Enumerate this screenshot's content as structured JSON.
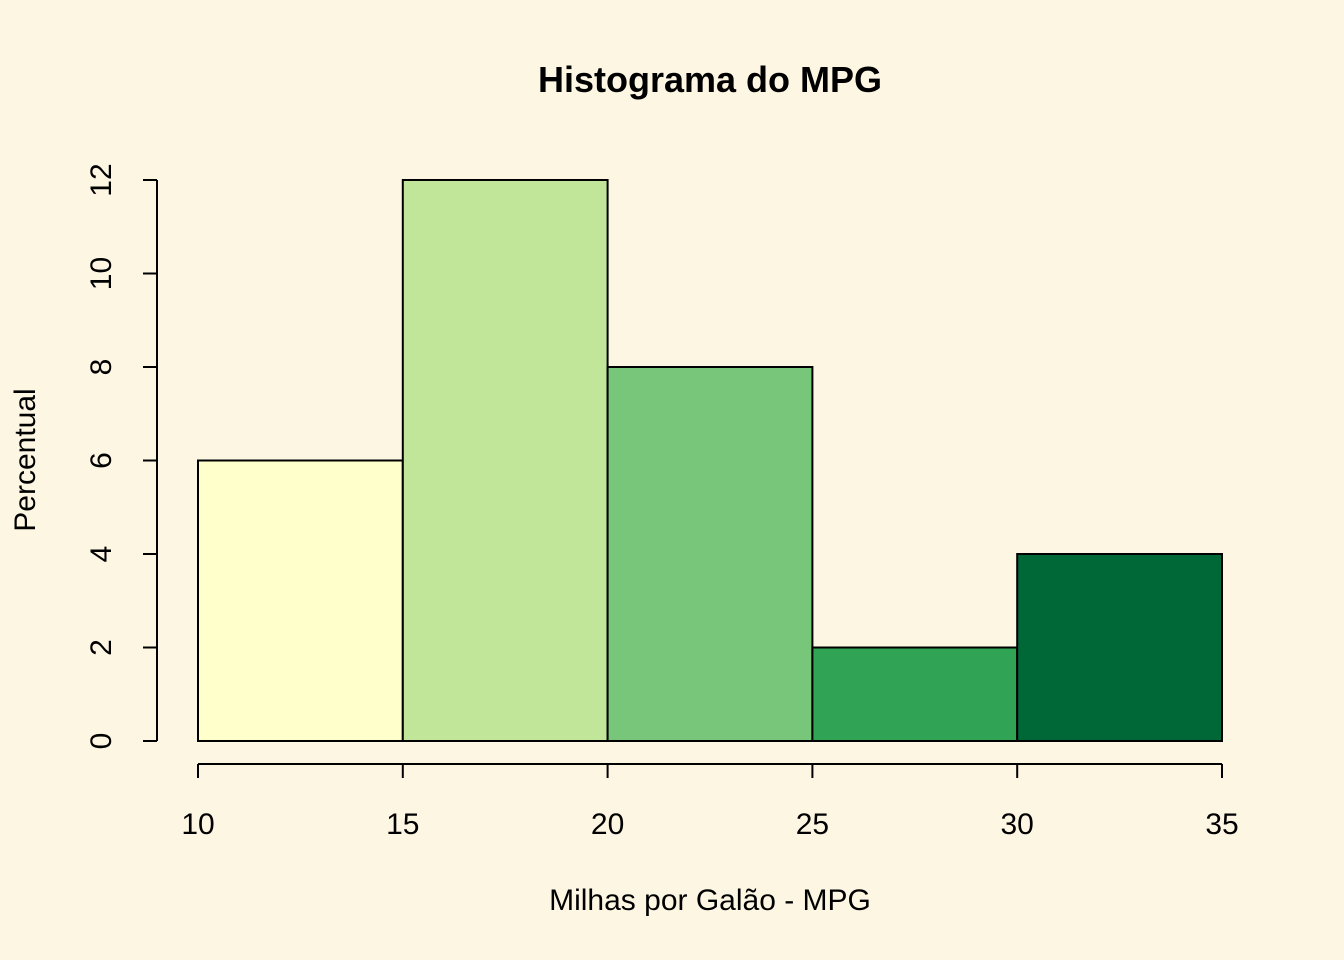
{
  "chart_data": {
    "type": "bar",
    "title": "Histograma do MPG",
    "xlabel": "Milhas por Galão - MPG",
    "ylabel": "Percentual",
    "bins": [
      {
        "from": 10,
        "to": 15,
        "value": 6,
        "color": "#ffffcc"
      },
      {
        "from": 15,
        "to": 20,
        "value": 12,
        "color": "#c2e699"
      },
      {
        "from": 20,
        "to": 25,
        "value": 8,
        "color": "#78c679"
      },
      {
        "from": 25,
        "to": 30,
        "value": 2,
        "color": "#31a354"
      },
      {
        "from": 30,
        "to": 35,
        "value": 4,
        "color": "#006837"
      }
    ],
    "x_ticks": [
      "10",
      "15",
      "20",
      "25",
      "30",
      "35"
    ],
    "y_ticks": [
      "0",
      "2",
      "4",
      "6",
      "8",
      "10",
      "12"
    ],
    "xlim": [
      10,
      35
    ],
    "ylim": [
      0,
      12
    ],
    "grid": false,
    "background": "#fdf6e3"
  }
}
